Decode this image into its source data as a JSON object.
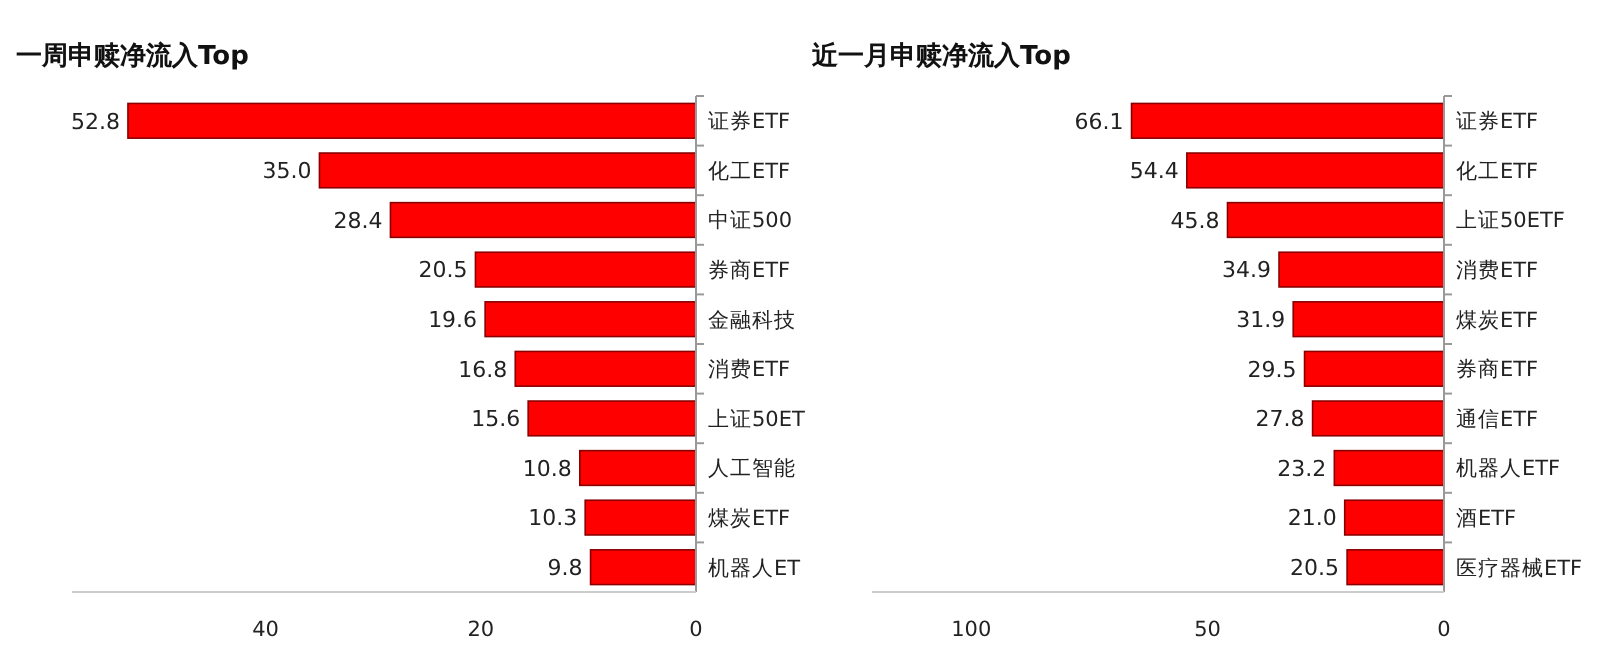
{
  "chart_data": [
    {
      "type": "bar",
      "orientation": "horizontal",
      "title": "一周申赎净流入Top",
      "categories": [
        "证券ETF",
        "化工ETF",
        "中证500",
        "券商ETF",
        "金融科技",
        "消费ETF",
        "上证50ET",
        "人工智能",
        "煤炭ETF",
        "机器人ET"
      ],
      "values": [
        52.8,
        35.0,
        28.4,
        20.5,
        19.6,
        16.8,
        15.6,
        10.8,
        10.3,
        9.8
      ],
      "value_labels": [
        "52.8",
        "35.0",
        "28.4",
        "20.5",
        "19.6",
        "16.8",
        "15.6",
        "10.8",
        "10.3",
        "9.8"
      ],
      "color": "#ff0000",
      "xlim": [
        58,
        0
      ],
      "xticks": [
        40,
        20,
        0
      ]
    },
    {
      "type": "bar",
      "orientation": "horizontal",
      "title": "近一月申赎净流入Top",
      "categories": [
        "证券ETF",
        "化工ETF",
        "上证50ETF",
        "消费ETF",
        "煤炭ETF",
        "券商ETF",
        "通信ETF",
        "机器人ETF",
        "酒ETF",
        "医疗器械ETF"
      ],
      "values": [
        66.1,
        54.4,
        45.8,
        34.9,
        31.9,
        29.5,
        27.8,
        23.2,
        21.0,
        20.5
      ],
      "value_labels": [
        "66.1",
        "54.4",
        "45.8",
        "34.9",
        "31.9",
        "29.5",
        "27.8",
        "23.2",
        "21.0",
        "20.5"
      ],
      "color": "#ff0000",
      "xlim": [
        121,
        0
      ],
      "xticks": [
        100,
        50,
        0
      ]
    }
  ]
}
